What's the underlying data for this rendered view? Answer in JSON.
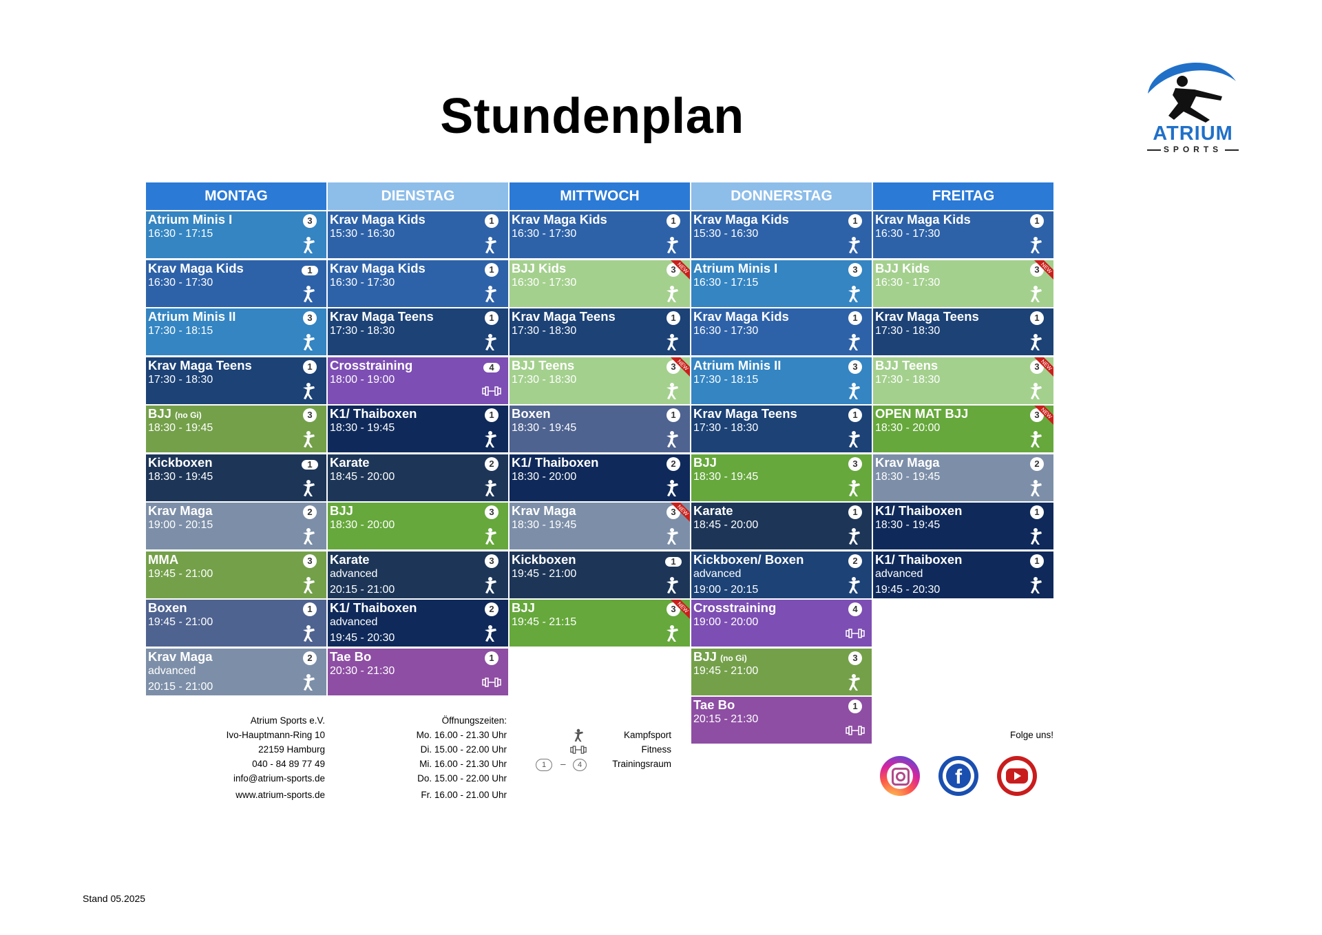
{
  "title": "Stundenplan",
  "logo": {
    "brand": "ATRIUM",
    "sub": "SPORTS"
  },
  "colors": {
    "blue": "#3485c2",
    "mid_blue": "#2e62a8",
    "dark_blue": "#1c4276",
    "navy": "#0f2a5a",
    "slate": "#1d3658",
    "grey_blue": "#7d8fa8",
    "dusty": "#4f6390",
    "light_green": "#a4d08e",
    "olive": "#74a04a",
    "green": "#66a83c",
    "purple": "#7d4eb3",
    "violet": "#8e4ea3",
    "head_dark": "#2b7ad6",
    "head_light": "#8dbde9",
    "new_red": "#c9201b"
  },
  "days": [
    "MONTAG",
    "DIENSTAG",
    "MITTWOCH",
    "DONNERSTAG",
    "FREITAG"
  ],
  "schedule": [
    [
      {
        "name": "Atrium Minis I",
        "l2": "16:30 - 17:15",
        "room": "3",
        "cat": "kampf",
        "color": "blue"
      },
      {
        "name": "Krav Maga Kids",
        "l2": "16:30 - 17:30",
        "room": "1",
        "pill": true,
        "cat": "kampf",
        "color": "mid_blue"
      },
      {
        "name": "Atrium Minis II",
        "l2": "17:30 - 18:15",
        "room": "3",
        "cat": "kampf",
        "color": "blue"
      },
      {
        "name": "Krav Maga Teens",
        "l2": "17:30 - 18:30",
        "room": "1",
        "cat": "kampf",
        "color": "dark_blue"
      },
      {
        "name": "BJJ",
        "name_small": "(no Gi)",
        "l2": "18:30 - 19:45",
        "room": "3",
        "cat": "kampf",
        "color": "olive"
      },
      {
        "name": "Kickboxen",
        "l2": "18:30 - 19:45",
        "room": "1",
        "pill": true,
        "cat": "kampf",
        "color": "slate"
      },
      {
        "name": "Krav Maga",
        "l2": "19:00 - 20:15",
        "room": "2",
        "cat": "kampf",
        "color": "grey_blue"
      },
      {
        "name": "MMA",
        "l2": "19:45 - 21:00",
        "room": "3",
        "cat": "kampf",
        "color": "olive"
      },
      {
        "name": "Boxen",
        "l2": "19:45 - 21:00",
        "room": "1",
        "cat": "kampf",
        "color": "dusty"
      },
      {
        "name": "Krav Maga",
        "l2": "advanced",
        "l3": "20:15 - 21:00",
        "room": "2",
        "cat": "kampf",
        "color": "grey_blue"
      }
    ],
    [
      {
        "name": "Krav Maga Kids",
        "l2": "15:30 - 16:30",
        "room": "1",
        "cat": "kampf",
        "color": "mid_blue"
      },
      {
        "name": "Krav Maga Kids",
        "l2": "16:30 - 17:30",
        "room": "1",
        "cat": "kampf",
        "color": "mid_blue"
      },
      {
        "name": "Krav Maga Teens",
        "l2": "17:30 - 18:30",
        "room": "1",
        "cat": "kampf",
        "color": "dark_blue"
      },
      {
        "name": "Crosstraining",
        "l2": "18:00 - 19:00",
        "room": "4",
        "pill": true,
        "cat": "fitness",
        "color": "purple"
      },
      {
        "name": "K1/ Thaiboxen",
        "l2": "18:30 - 19:45",
        "room": "1",
        "cat": "kampf",
        "color": "navy"
      },
      {
        "name": "Karate",
        "l2": "18:45 - 20:00",
        "room": "2",
        "cat": "kampf",
        "color": "slate"
      },
      {
        "name": "BJJ",
        "l2": "18:30 - 20:00",
        "room": "3",
        "cat": "kampf",
        "color": "green"
      },
      {
        "name": "Karate",
        "l2": "advanced",
        "l3": "20:15 - 21:00",
        "room": "3",
        "cat": "kampf",
        "color": "slate"
      },
      {
        "name": "K1/ Thaiboxen",
        "l2": "advanced",
        "l3": "19:45 - 20:30",
        "room": "2",
        "cat": "kampf",
        "color": "navy"
      },
      {
        "name": "Tae Bo",
        "l2": "20:30 - 21:30",
        "room": "1",
        "cat": "fitness",
        "color": "violet"
      }
    ],
    [
      {
        "name": "Krav Maga Kids",
        "l2": "16:30 - 17:30",
        "room": "1",
        "cat": "kampf",
        "color": "mid_blue"
      },
      {
        "name": "BJJ Kids",
        "l2": "16:30 - 17:30",
        "room": "3",
        "cat": "kampf",
        "color": "light_green",
        "new": true
      },
      {
        "name": "Krav Maga Teens",
        "l2": "17:30 - 18:30",
        "room": "1",
        "cat": "kampf",
        "color": "dark_blue"
      },
      {
        "name": "BJJ Teens",
        "l2": "17:30 - 18:30",
        "room": "3",
        "cat": "kampf",
        "color": "light_green",
        "new": true
      },
      {
        "name": "Boxen",
        "l2": "18:30 - 19:45",
        "room": "1",
        "cat": "kampf",
        "color": "dusty"
      },
      {
        "name": "K1/ Thaiboxen",
        "l2": "18:30 - 20:00",
        "room": "2",
        "cat": "kampf",
        "color": "navy"
      },
      {
        "name": "Krav Maga",
        "l2": "18:30 - 19:45",
        "room": "3",
        "cat": "kampf",
        "color": "grey_blue",
        "new": true
      },
      {
        "name": "Kickboxen",
        "l2": "19:45 - 21:00",
        "room": "1",
        "pill": true,
        "cat": "kampf",
        "color": "slate"
      },
      {
        "name": "BJJ",
        "l2": "19:45 - 21:15",
        "room": "3",
        "cat": "kampf",
        "color": "green",
        "new": true
      }
    ],
    [
      {
        "name": "Krav Maga Kids",
        "l2": "15:30 - 16:30",
        "room": "1",
        "cat": "kampf",
        "color": "mid_blue"
      },
      {
        "name": "Atrium Minis I",
        "l2": "16:30 - 17:15",
        "room": "3",
        "cat": "kampf",
        "color": "blue"
      },
      {
        "name": "Krav Maga Kids",
        "l2": "16:30 - 17:30",
        "room": "1",
        "cat": "kampf",
        "color": "mid_blue"
      },
      {
        "name": "Atrium Minis II",
        "l2": "17:30 - 18:15",
        "room": "3",
        "cat": "kampf",
        "color": "blue"
      },
      {
        "name": "Krav Maga Teens",
        "l2": "17:30 - 18:30",
        "room": "1",
        "cat": "kampf",
        "color": "dark_blue"
      },
      {
        "name": "BJJ",
        "l2": "18:30 - 19:45",
        "room": "3",
        "cat": "kampf",
        "color": "green"
      },
      {
        "name": "Karate",
        "l2": "18:45 - 20:00",
        "room": "1",
        "cat": "kampf",
        "color": "slate"
      },
      {
        "name": "Kickboxen/ Boxen",
        "l2": "advanced",
        "l3": "19:00 - 20:15",
        "room": "2",
        "cat": "kampf",
        "color": "dark_blue"
      },
      {
        "name": "Crosstraining",
        "l2": "19:00 - 20:00",
        "room": "4",
        "cat": "fitness",
        "color": "purple"
      },
      {
        "name": "BJJ",
        "name_small": "(no Gi)",
        "l2": "19:45 - 21:00",
        "room": "3",
        "cat": "kampf",
        "color": "olive"
      },
      {
        "name": "Tae Bo",
        "l2": "20:15 - 21:30",
        "room": "1",
        "cat": "fitness",
        "color": "violet"
      }
    ],
    [
      {
        "name": "Krav Maga Kids",
        "l2": "16:30 - 17:30",
        "room": "1",
        "cat": "kampf",
        "color": "mid_blue"
      },
      {
        "name": "BJJ Kids",
        "l2": "16:30 - 17:30",
        "room": "3",
        "cat": "kampf",
        "color": "light_green",
        "new": true
      },
      {
        "name": "Krav Maga Teens",
        "l2": "17:30 - 18:30",
        "room": "1",
        "cat": "kampf",
        "color": "dark_blue"
      },
      {
        "name": "BJJ Teens",
        "l2": "17:30 - 18:30",
        "room": "3",
        "cat": "kampf",
        "color": "light_green",
        "new": true
      },
      {
        "name": "OPEN MAT BJJ",
        "l2": "18:30 - 20:00",
        "room": "3",
        "cat": "kampf",
        "color": "green",
        "new": true
      },
      {
        "name": "Krav Maga",
        "l2": "18:30 - 19:45",
        "room": "2",
        "cat": "kampf",
        "color": "grey_blue"
      },
      {
        "name": "K1/ Thaiboxen",
        "l2": "18:30 - 19:45",
        "room": "1",
        "cat": "kampf",
        "color": "navy"
      },
      {
        "name": "K1/ Thaiboxen",
        "l2": "advanced",
        "l3": "19:45 - 20:30",
        "room": "1",
        "cat": "kampf",
        "color": "navy"
      }
    ]
  ],
  "new_label": "NEW",
  "footer": {
    "address": [
      "Atrium Sports e.V.",
      "Ivo-Hauptmann-Ring 10",
      "22159 Hamburg",
      "040 - 84 89 77 49",
      "info@atrium-sports.de",
      "www.atrium-sports.de"
    ],
    "hours_title": "Öffnungszeiten:",
    "hours": [
      "Mo. 16.00 - 21.30 Uhr",
      "Di.  15.00 - 22.00 Uhr",
      "Mi.  16.00 - 21.30 Uhr",
      "Do. 15.00 - 22.00 Uhr",
      "Fr.  16.00 - 21.00 Uhr"
    ],
    "legend": [
      {
        "icon": "kampfsport-icon",
        "label": "Kampfsport"
      },
      {
        "icon": "fitness-icon",
        "label": "Fitness"
      },
      {
        "icon": "room-number-icon",
        "label": "Trainingsraum",
        "from": "1",
        "to": "4"
      }
    ],
    "follow": "Folge uns!",
    "social": [
      "instagram-icon",
      "facebook-icon",
      "youtube-icon"
    ]
  },
  "stand": "Stand 05.2025"
}
